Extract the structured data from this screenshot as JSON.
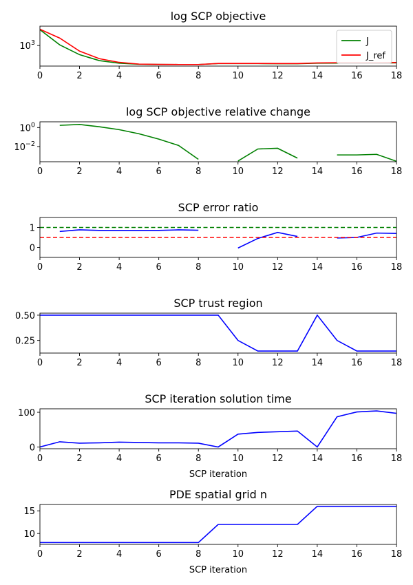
{
  "chart_data": [
    {
      "type": "line",
      "title": "log SCP objective",
      "xlabel": "",
      "ylabel": "",
      "yscale": "log",
      "xlim": [
        0,
        18
      ],
      "ylim": [
        230,
        4000
      ],
      "xticks": [
        0,
        2,
        4,
        6,
        8,
        10,
        12,
        14,
        16,
        18
      ],
      "yticks": [
        {
          "value": 1000,
          "label": "10",
          "sup": "3"
        }
      ],
      "legend": "upper right",
      "series": [
        {
          "name": "J",
          "color": "#008000",
          "style": "solid",
          "x": [
            0,
            1,
            2,
            3,
            4,
            5,
            6,
            7,
            8,
            9,
            10,
            11,
            12,
            13,
            14,
            15,
            16,
            17,
            18
          ],
          "y": [
            3100,
            1050,
            520,
            340,
            282,
            263,
            258,
            257,
            257,
            275,
            275,
            275,
            273,
            273,
            282,
            285,
            285,
            285,
            290
          ]
        },
        {
          "name": "J_ref",
          "color": "#ff0000",
          "style": "solid",
          "x": [
            0,
            1,
            2,
            3,
            4,
            5,
            6,
            7,
            8,
            9,
            10,
            11,
            12,
            13,
            14,
            15,
            16,
            17,
            18
          ],
          "y": [
            3200,
            1700,
            670,
            390,
            300,
            265,
            259,
            257,
            257,
            278,
            278,
            278,
            276,
            276,
            288,
            292,
            292,
            292,
            297
          ]
        }
      ]
    },
    {
      "type": "line",
      "title": "log SCP objective relative change",
      "xlabel": "",
      "ylabel": "",
      "yscale": "log",
      "xlim": [
        0,
        18
      ],
      "ylim": [
        0.00025,
        4.0
      ],
      "xticks": [
        0,
        2,
        4,
        6,
        8,
        10,
        12,
        14,
        16,
        18
      ],
      "yticks": [
        {
          "value": 1,
          "label": "10",
          "sup": "0"
        },
        {
          "value": 0.01,
          "label": "10",
          "sup": "−2"
        }
      ],
      "legend": "none",
      "series": [
        {
          "name": "",
          "color": "#008000",
          "style": "solid",
          "x": [
            1,
            2,
            3,
            4,
            5,
            6,
            7,
            8,
            null,
            10,
            11,
            12,
            13,
            null,
            15,
            16,
            17,
            18
          ],
          "y": [
            1.7,
            2.1,
            1.2,
            0.6,
            0.22,
            0.06,
            0.013,
            0.00045,
            null,
            0.0003,
            0.0055,
            0.0065,
            0.0006,
            null,
            0.0013,
            0.0013,
            0.0015,
            0.00028
          ]
        }
      ]
    },
    {
      "type": "line",
      "title": "SCP error ratio",
      "xlabel": "",
      "ylabel": "",
      "yscale": "linear",
      "xlim": [
        0,
        18
      ],
      "ylim": [
        -0.5,
        1.5
      ],
      "xticks": [
        0,
        2,
        4,
        6,
        8,
        10,
        12,
        14,
        16,
        18
      ],
      "yticks": [
        {
          "value": 1,
          "label": "1"
        },
        {
          "value": 0,
          "label": "0"
        }
      ],
      "legend": "none",
      "series": [
        {
          "name": "",
          "color": "#0000ff",
          "style": "solid",
          "x": [
            1,
            2,
            3,
            4,
            5,
            6,
            7,
            8,
            null,
            10,
            11,
            12,
            13,
            null,
            15,
            16,
            17,
            18
          ],
          "y": [
            0.8,
            0.88,
            0.85,
            0.85,
            0.85,
            0.85,
            0.88,
            0.86,
            null,
            -0.03,
            0.45,
            0.75,
            0.55,
            null,
            0.47,
            0.5,
            0.72,
            0.7
          ]
        },
        {
          "name": "",
          "color": "#008000",
          "style": "dashed",
          "x": [
            0,
            18
          ],
          "y": [
            1,
            1
          ]
        },
        {
          "name": "",
          "color": "#ff0000",
          "style": "dashed",
          "x": [
            0,
            18
          ],
          "y": [
            0.5,
            0.5
          ]
        }
      ]
    },
    {
      "type": "line",
      "title": "SCP trust region",
      "xlabel": "",
      "ylabel": "",
      "yscale": "linear",
      "xlim": [
        0,
        18
      ],
      "ylim": [
        0.125,
        0.52
      ],
      "xticks": [
        0,
        2,
        4,
        6,
        8,
        10,
        12,
        14,
        16,
        18
      ],
      "yticks": [
        {
          "value": 0.5,
          "label": "0.50"
        },
        {
          "value": 0.25,
          "label": "0.25"
        }
      ],
      "legend": "none",
      "series": [
        {
          "name": "",
          "color": "#0000ff",
          "style": "solid",
          "x": [
            0,
            1,
            2,
            3,
            4,
            5,
            6,
            7,
            8,
            9,
            10,
            11,
            12,
            13,
            14,
            15,
            16,
            17,
            18
          ],
          "y": [
            0.5,
            0.5,
            0.5,
            0.5,
            0.5,
            0.5,
            0.5,
            0.5,
            0.5,
            0.5,
            0.25,
            0.145,
            0.145,
            0.145,
            0.5,
            0.25,
            0.145,
            0.145,
            0.145
          ]
        }
      ]
    },
    {
      "type": "line",
      "title": "SCP iteration solution time",
      "xlabel": "SCP iteration",
      "ylabel": "",
      "yscale": "linear",
      "xlim": [
        0,
        18
      ],
      "ylim": [
        -5,
        110
      ],
      "xticks": [
        0,
        2,
        4,
        6,
        8,
        10,
        12,
        14,
        16,
        18
      ],
      "yticks": [
        {
          "value": 100,
          "label": "100"
        },
        {
          "value": 0,
          "label": "0"
        }
      ],
      "legend": "none",
      "series": [
        {
          "name": "",
          "color": "#0000ff",
          "style": "solid",
          "x": [
            0,
            1,
            2,
            3,
            4,
            5,
            6,
            7,
            8,
            9,
            10,
            11,
            12,
            13,
            14,
            15,
            16,
            17,
            18
          ],
          "y": [
            0,
            15,
            11,
            12,
            14,
            13,
            12,
            12,
            11,
            0,
            37,
            42,
            44,
            46,
            0,
            87,
            101,
            104,
            97
          ]
        }
      ]
    },
    {
      "type": "line",
      "title": "PDE spatial grid n",
      "xlabel": "SCP iteration",
      "ylabel": "",
      "yscale": "linear",
      "xlim": [
        0,
        18
      ],
      "ylim": [
        7.6,
        16.4
      ],
      "xticks": [
        0,
        2,
        4,
        6,
        8,
        10,
        12,
        14,
        16,
        18
      ],
      "yticks": [
        {
          "value": 15,
          "label": "15"
        },
        {
          "value": 10,
          "label": "10"
        }
      ],
      "legend": "none",
      "series": [
        {
          "name": "",
          "color": "#0000ff",
          "style": "solid",
          "x": [
            0,
            1,
            2,
            3,
            4,
            5,
            6,
            7,
            8,
            9,
            10,
            11,
            12,
            13,
            14,
            15,
            16,
            17,
            18
          ],
          "y": [
            8,
            8,
            8,
            8,
            8,
            8,
            8,
            8,
            8,
            12,
            12,
            12,
            12,
            12,
            16,
            16,
            16,
            16,
            16
          ]
        }
      ]
    }
  ]
}
